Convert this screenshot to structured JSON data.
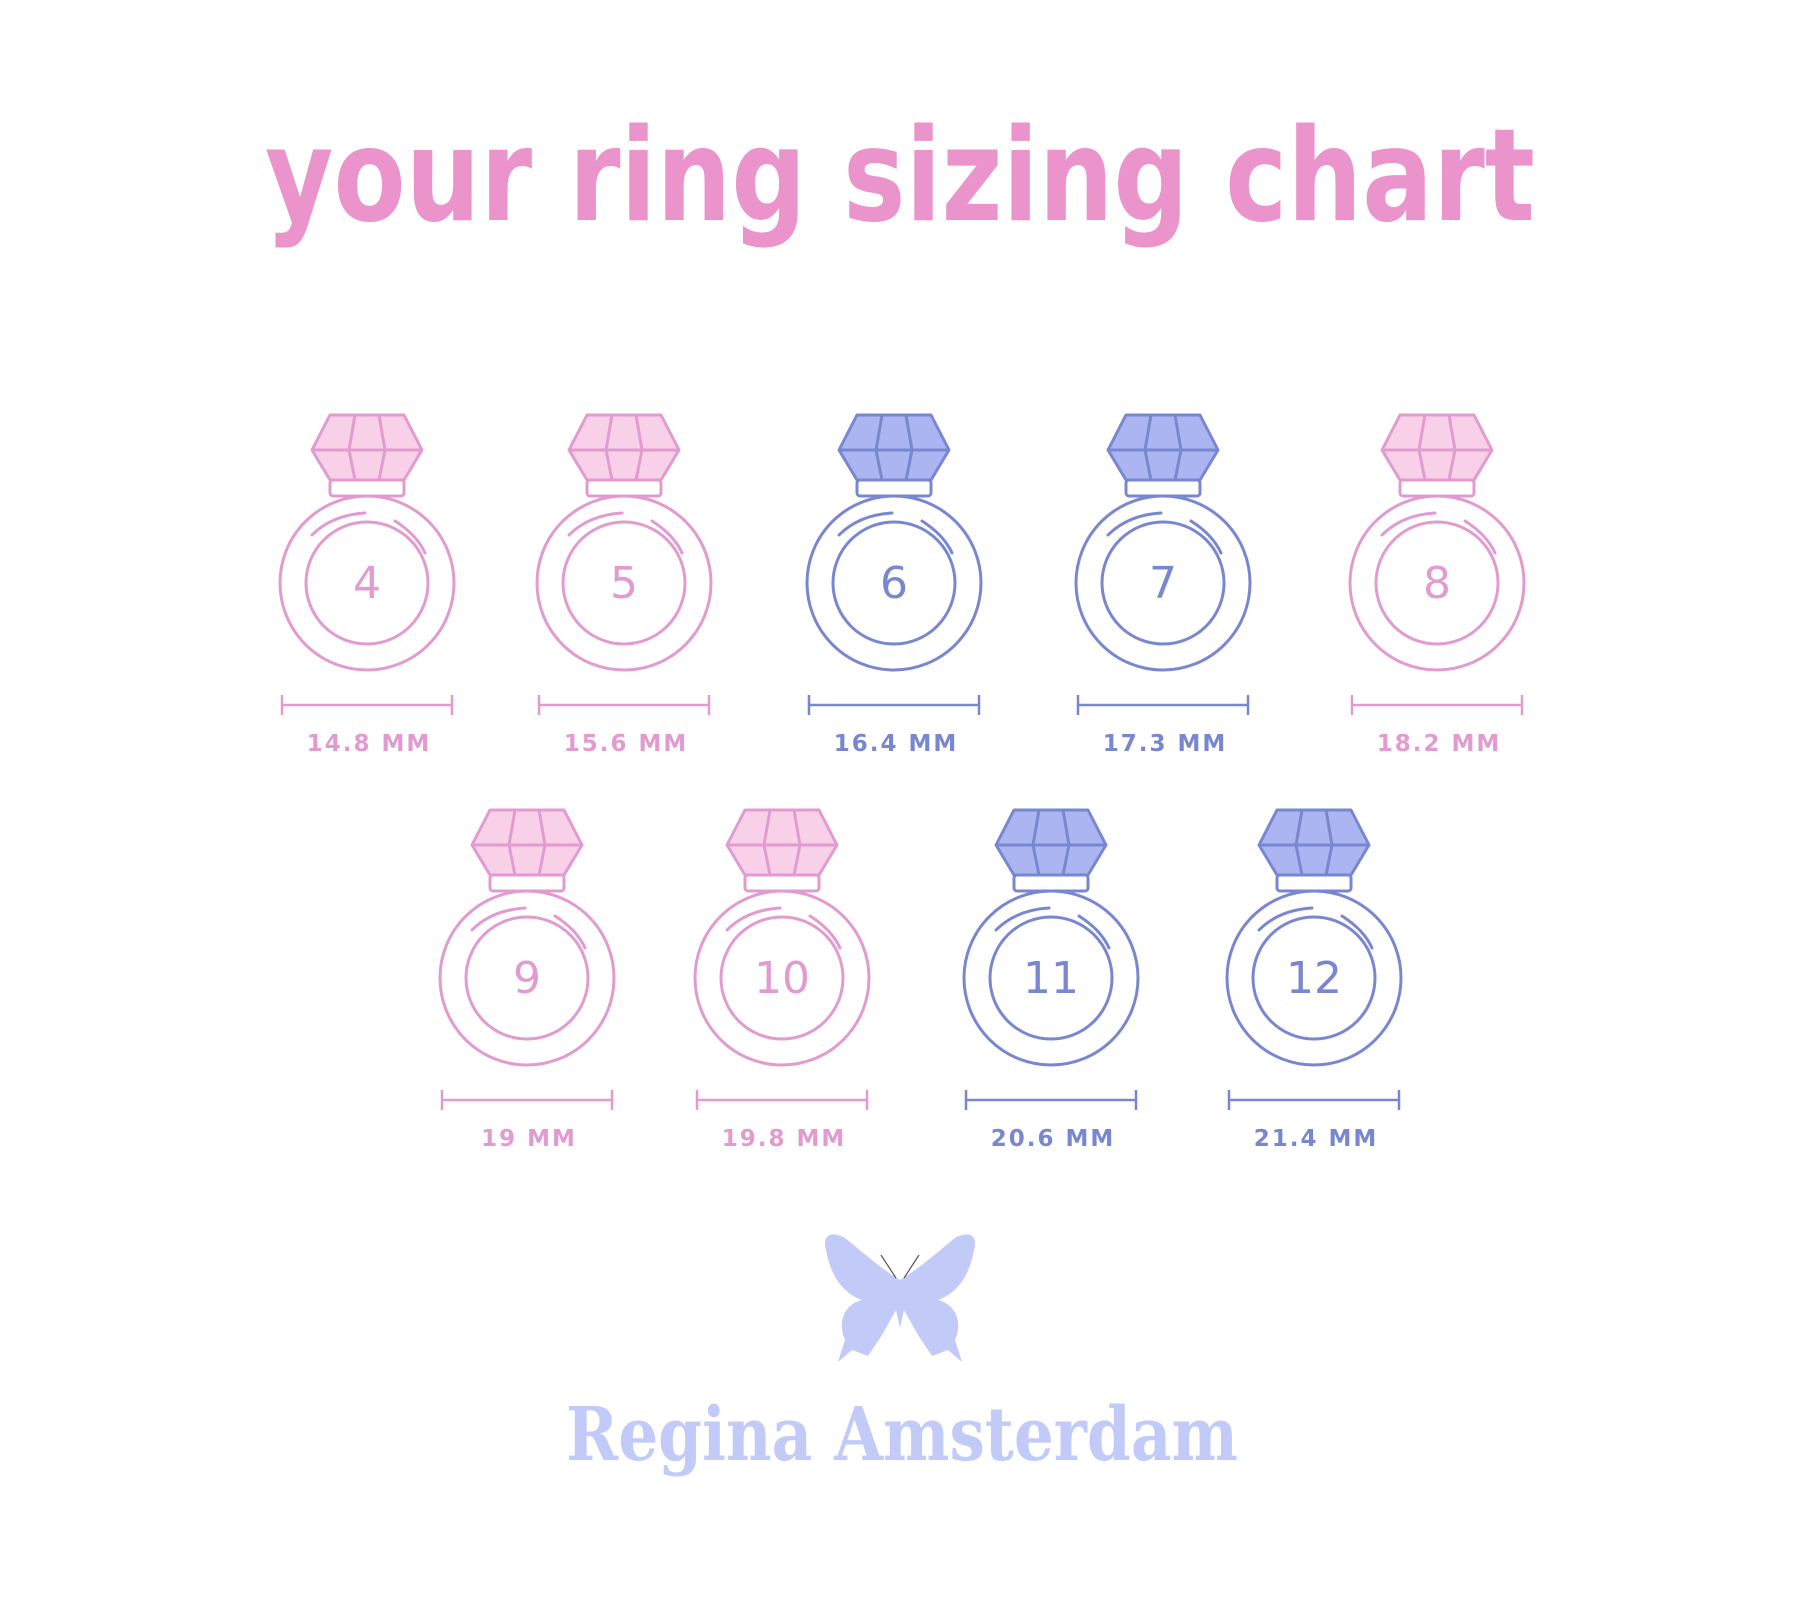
{
  "title": "your ring sizing chart",
  "colors": {
    "title": "#ea94cb",
    "pink_line": "#e29bd0",
    "pink_gem": "#f8d0e7",
    "blue_line": "#7887cf",
    "blue_gem": "#aab5f1",
    "brand": "#c2caf8"
  },
  "rows": [
    [
      {
        "size": "4",
        "label": "14.8 MM",
        "color": "pink"
      },
      {
        "size": "5",
        "label": "15.6 MM",
        "color": "pink"
      },
      {
        "size": "6",
        "label": "16.4 MM",
        "color": "blue"
      },
      {
        "size": "7",
        "label": "17.3 MM",
        "color": "blue"
      },
      {
        "size": "8",
        "label": "18.2 MM",
        "color": "pink"
      }
    ],
    [
      {
        "size": "9",
        "label": "19 MM",
        "color": "pink"
      },
      {
        "size": "10",
        "label": "19.8 MM",
        "color": "pink"
      },
      {
        "size": "11",
        "label": "20.6 MM",
        "color": "blue"
      },
      {
        "size": "12",
        "label": "21.4 MM",
        "color": "blue"
      }
    ]
  ],
  "brand": {
    "name": "Regina Amsterdam",
    "icon": "butterfly-icon"
  }
}
